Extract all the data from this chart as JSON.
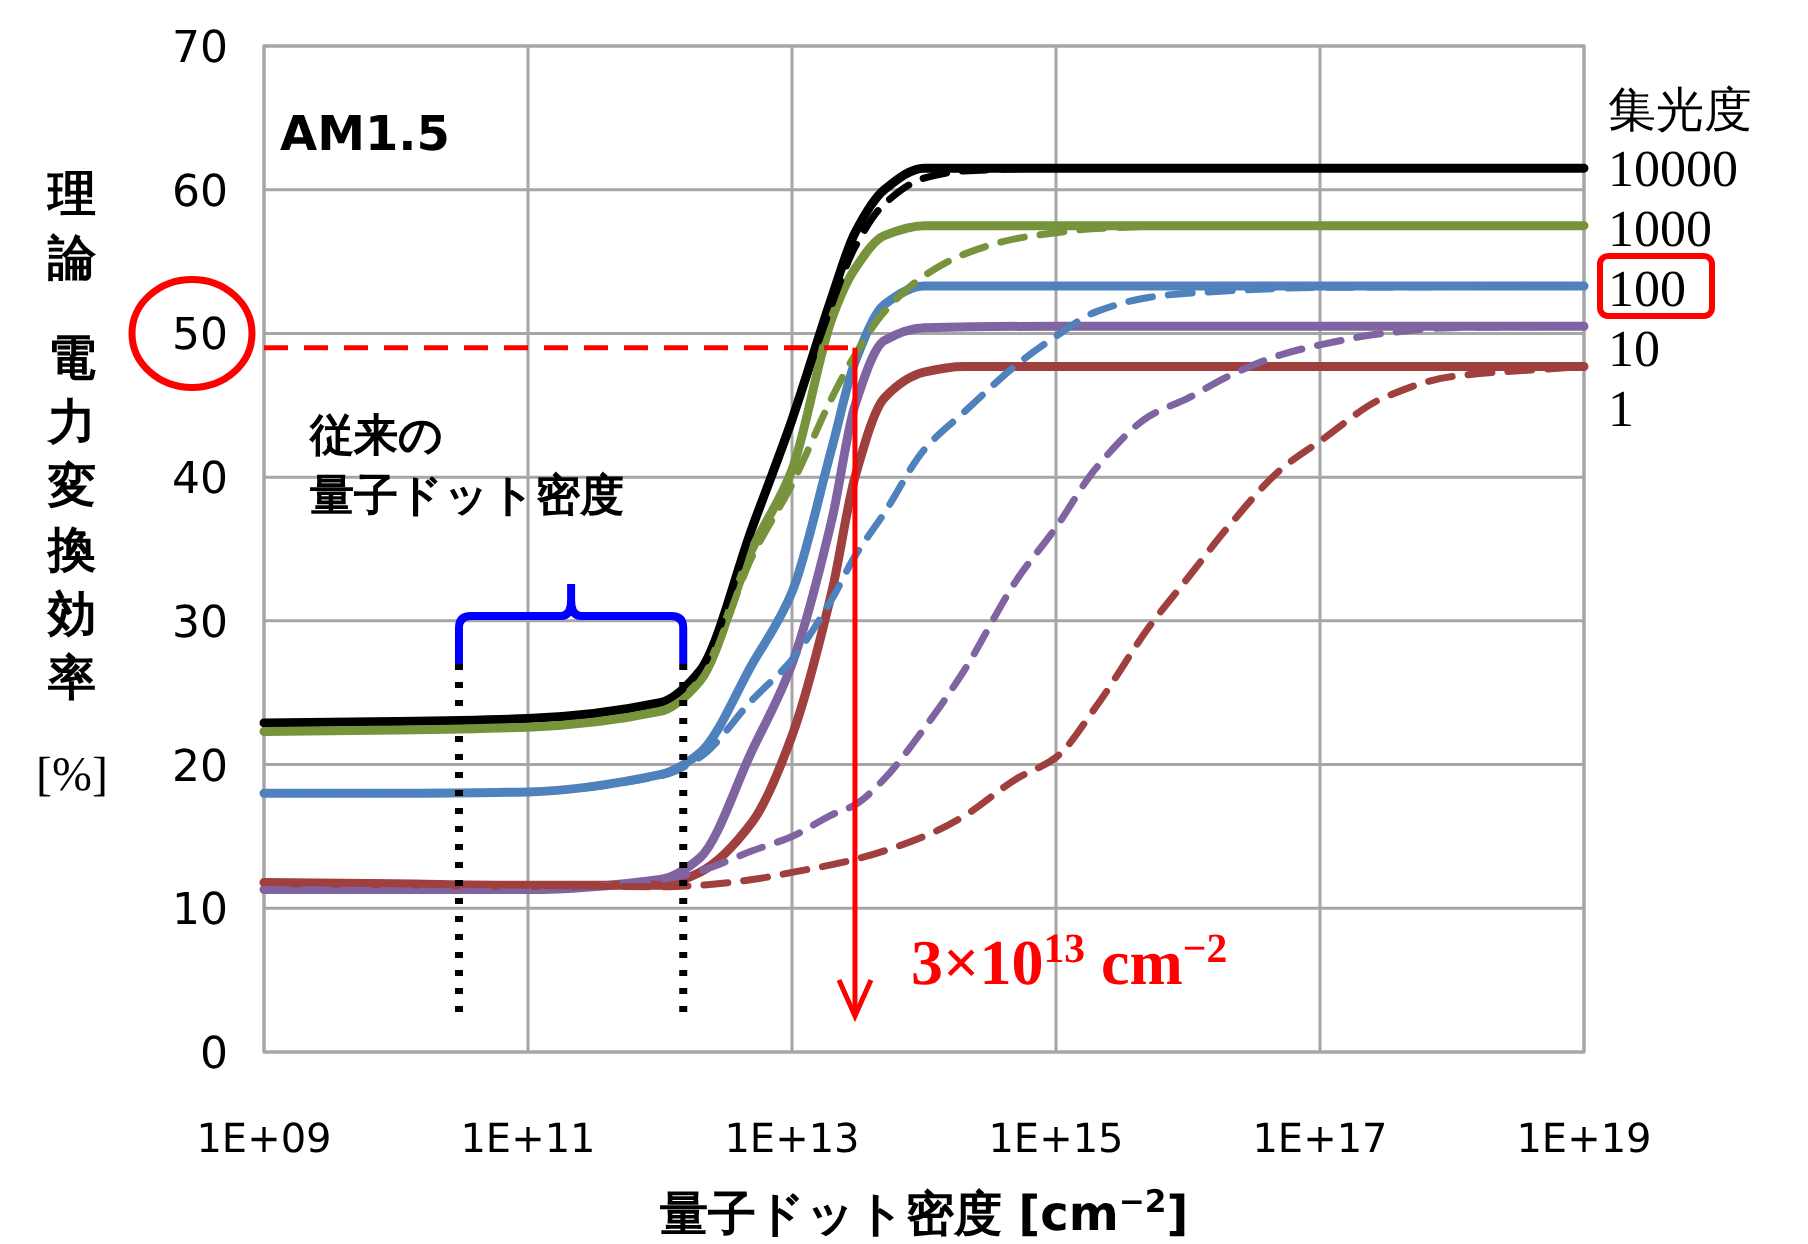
{
  "chart_data": {
    "type": "line",
    "log": "x",
    "xlabel": "量子ドット密度 [cm$^{−2}$]",
    "ylabel": "理論電力変換効率 [%]",
    "legend_title": "集光度",
    "legend": "right",
    "grid": true,
    "xlim": [
      1000000000.0,
      1e+19
    ],
    "ylim": [
      0,
      70
    ],
    "xticks": [
      {
        "value": 1000000000.0,
        "label": "1E+09"
      },
      {
        "value": 100000000000.0,
        "label": "1E+11"
      },
      {
        "value": 10000000000000.0,
        "label": "1E+13"
      },
      {
        "value": 1000000000000000.0,
        "label": "1E+15"
      },
      {
        "value": 1e+17,
        "label": "1E+17"
      },
      {
        "value": 1e+19,
        "label": "1E+19"
      }
    ],
    "yticks": [
      0,
      10,
      20,
      30,
      40,
      50,
      60,
      70
    ],
    "annotations": [
      "AM1.5",
      "従来の",
      "量子ドット密度"
    ],
    "ref_lines": [
      {
        "axis": "y",
        "value": 49,
        "color": "#ff0000",
        "line_style": "dashed"
      },
      {
        "axis": "x",
        "value": 30000000000000.0,
        "color": "#ff0000",
        "line_style": "solid",
        "label": "3×10$^{13}$ cm$^{−2}$"
      },
      {
        "axis": "x",
        "value": 30000000000.0,
        "color": "#000000",
        "line_style": "dotted"
      },
      {
        "axis": "x",
        "value": 1500000000000.0,
        "color": "#000000",
        "line_style": "dotted"
      }
    ],
    "series": [
      {
        "name": "10000",
        "color": "#000000",
        "line_style": "solid",
        "x": [
          1000000000.0,
          10000000000.0,
          100000000000.0,
          1000000000000.0,
          2000000000000.0,
          5000000000000.0,
          10000000000000.0,
          20000000000000.0,
          30000000000000.0,
          50000000000000.0,
          100000000000000.0,
          1000000000000000.0,
          1e+17,
          1e+19
        ],
        "values": [
          22.9,
          23,
          23.2,
          24.3,
          26.5,
          36.5,
          44,
          52.5,
          57,
          60,
          61.5,
          61.5,
          61.5,
          61.5
        ]
      },
      {
        "name": "1000",
        "color": "#77933c",
        "line_style": "solid",
        "x": [
          1000000000.0,
          10000000000.0,
          100000000000.0,
          1000000000000.0,
          2000000000000.0,
          5000000000000.0,
          10000000000000.0,
          20000000000000.0,
          30000000000000.0,
          50000000000000.0,
          100000000000000.0,
          1000000000000000.0,
          1e+17,
          1e+19
        ],
        "values": [
          22.3,
          22.4,
          22.6,
          23.7,
          25.8,
          35,
          40.5,
          51,
          54.5,
          56.8,
          57.5,
          57.5,
          57.5,
          57.5
        ]
      },
      {
        "name": "100",
        "color": "#4f81bd",
        "line_style": "solid",
        "x": [
          1000000000.0,
          10000000000.0,
          100000000000.0,
          1000000000000.0,
          2000000000000.0,
          5000000000000.0,
          10000000000000.0,
          20000000000000.0,
          30000000000000.0,
          50000000000000.0,
          100000000000000.0,
          1000000000000000.0,
          1e+17,
          1e+19
        ],
        "values": [
          18,
          18,
          18.1,
          19.3,
          20.8,
          27,
          32,
          42,
          48,
          52,
          53.3,
          53.3,
          53.3,
          53.3
        ]
      },
      {
        "name": "10",
        "color": "#8064a2",
        "line_style": "solid",
        "x": [
          1000000000.0,
          10000000000.0,
          100000000000.0,
          1000000000000.0,
          2000000000000.0,
          5000000000000.0,
          10000000000000.0,
          20000000000000.0,
          30000000000000.0,
          50000000000000.0,
          100000000000000.0,
          1000000000000000.0,
          1e+17,
          1e+19
        ],
        "values": [
          11.3,
          11.3,
          11.3,
          12,
          13.5,
          21,
          27,
          37,
          45,
          49.5,
          50.4,
          50.5,
          50.5,
          50.5
        ]
      },
      {
        "name": "1",
        "color": "#a0403e",
        "line_style": "solid",
        "x": [
          1000000000.0,
          10000000000.0,
          100000000000.0,
          1000000000000.0,
          2000000000000.0,
          5000000000000.0,
          10000000000000.0,
          20000000000000.0,
          30000000000000.0,
          50000000000000.0,
          100000000000000.0,
          200000000000000.0,
          1000000000000000.0,
          1e+17,
          1e+19
        ],
        "values": [
          11.8,
          11.7,
          11.6,
          11.6,
          12.5,
          16,
          22,
          32,
          40,
          45.5,
          47.3,
          47.7,
          47.7,
          47.7,
          47.7
        ]
      },
      {
        "color": "#000000",
        "line_style": "dashed",
        "x": [
          1000000000.0,
          10000000000.0,
          100000000000.0,
          1000000000000.0,
          2000000000000.0,
          5000000000000.0,
          10000000000000.0,
          20000000000000.0,
          30000000000000.0,
          50000000000000.0,
          100000000000000.0,
          200000000000000.0,
          1000000000000000.0,
          1e+17,
          1e+19
        ],
        "values": [
          22.9,
          23,
          23.2,
          24.3,
          26.5,
          36.5,
          44,
          52,
          56,
          59,
          60.8,
          61.3,
          61.5,
          61.5,
          61.5
        ]
      },
      {
        "color": "#77933c",
        "line_style": "dashed",
        "x": [
          1000000000.0,
          10000000000.0,
          100000000000.0,
          1000000000000.0,
          2000000000000.0,
          5000000000000.0,
          10000000000000.0,
          20000000000000.0,
          30000000000000.0,
          50000000000000.0,
          100000000000000.0,
          200000000000000.0,
          500000000000000.0,
          1000000000000000.0,
          2000000000000000.0,
          1e+16,
          1e+19
        ],
        "values": [
          22.3,
          22.4,
          22.6,
          23.7,
          25.8,
          34.5,
          39.5,
          45.5,
          48.5,
          51.5,
          54,
          55.5,
          56.6,
          57,
          57.3,
          57.5,
          57.5
        ]
      },
      {
        "color": "#4f81bd",
        "line_style": "dashed",
        "x": [
          1000000000.0,
          10000000000.0,
          100000000000.0,
          1000000000000.0,
          2000000000000.0,
          5000000000000.0,
          10000000000000.0,
          20000000000000.0,
          30000000000000.0,
          50000000000000.0,
          100000000000000.0,
          200000000000000.0,
          500000000000000.0,
          1000000000000000.0,
          2000000000000000.0,
          5000000000000000.0,
          1e+16,
          1e+17,
          1e+19
        ],
        "values": [
          18,
          18,
          18.1,
          19.2,
          20.5,
          24.5,
          27.3,
          31.5,
          34.5,
          37.5,
          41.9,
          44.5,
          47.8,
          49.8,
          51.5,
          52.5,
          52.8,
          53.2,
          53.3
        ]
      },
      {
        "color": "#8064a2",
        "line_style": "dashed",
        "x": [
          1000000000.0,
          10000000000.0,
          100000000000.0,
          1000000000000.0,
          2000000000000.0,
          5000000000000.0,
          10000000000000.0,
          20000000000000.0,
          30000000000000.0,
          50000000000000.0,
          100000000000000.0,
          200000000000000.0,
          500000000000000.0,
          1000000000000000.0,
          2000000000000000.0,
          5000000000000000.0,
          1e+16,
          2e+16,
          5e+16,
          1e+17,
          3e+17,
          1e+18,
          1e+19
        ],
        "values": [
          11.3,
          11.3,
          11.3,
          12,
          12.6,
          14,
          15,
          16.5,
          17.2,
          19,
          22.5,
          26.5,
          32.8,
          36.5,
          40.6,
          44.2,
          45.5,
          47,
          48.5,
          49.2,
          50,
          50.4,
          50.5
        ]
      },
      {
        "color": "#a0403e",
        "line_style": "dashed",
        "x": [
          1000000000.0,
          10000000000.0,
          100000000000.0,
          1000000000000.0,
          2000000000000.0,
          5000000000000.0,
          10000000000000.0,
          30000000000000.0,
          100000000000000.0,
          200000000000000.0,
          500000000000000.0,
          1000000000000000.0,
          2000000000000000.0,
          5000000000000000.0,
          1e+16,
          2e+16,
          5e+16,
          1e+17,
          3e+17,
          1e+18,
          1e+19
        ],
        "values": [
          11.8,
          11.7,
          11.6,
          11.5,
          11.6,
          12,
          12.5,
          13.4,
          15,
          16.4,
          19,
          20.5,
          24,
          29.5,
          33,
          36.5,
          40.5,
          42.5,
          45.5,
          47,
          47.7
        ]
      }
    ]
  }
}
